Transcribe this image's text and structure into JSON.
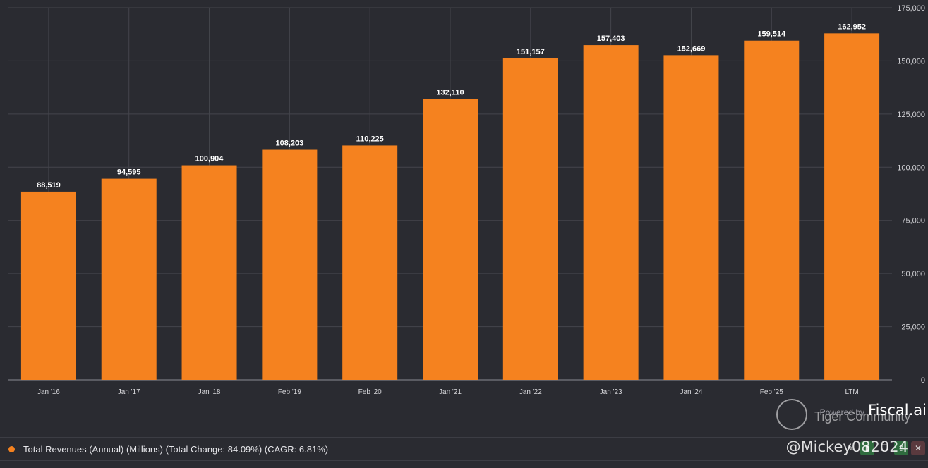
{
  "chart_data": {
    "type": "bar",
    "categories": [
      "Jan '16",
      "Jan '17",
      "Jan '18",
      "Feb '19",
      "Feb '20",
      "Jan '21",
      "Jan '22",
      "Jan '23",
      "Jan '24",
      "Feb '25",
      "LTM"
    ],
    "values": [
      88519,
      94595,
      100904,
      108203,
      110225,
      132110,
      151157,
      157403,
      152669,
      159514,
      162952
    ],
    "value_labels": [
      "88,519",
      "94,595",
      "100,904",
      "108,203",
      "110,225",
      "132,110",
      "151,157",
      "157,403",
      "152,669",
      "159,514",
      "162,952"
    ],
    "y_ticks": [
      0,
      25000,
      50000,
      75000,
      100000,
      125000,
      150000,
      175000
    ],
    "y_tick_labels": [
      "0",
      "25,000",
      "50,000",
      "75,000",
      "100,000",
      "125,000",
      "150,000",
      "175,000"
    ],
    "ylim": [
      0,
      175000
    ],
    "y_axis_side": "right",
    "grid": true,
    "bar_color": "#f5821f",
    "legend": {
      "text": "Total Revenues (Annual) (Millions) (Total Change: 84.09%) (CAGR: 6.81%)",
      "color": "#f5821f",
      "placement": "bottom-left"
    }
  },
  "brand": {
    "powered_by": "Powered by",
    "name": "Fiscal.ai"
  },
  "watermark": {
    "name": "Tiger Community",
    "handle": "@Mickey082024"
  },
  "colors": {
    "background": "#2a2b31",
    "grid": "#44454c",
    "accent": "#f5821f"
  }
}
